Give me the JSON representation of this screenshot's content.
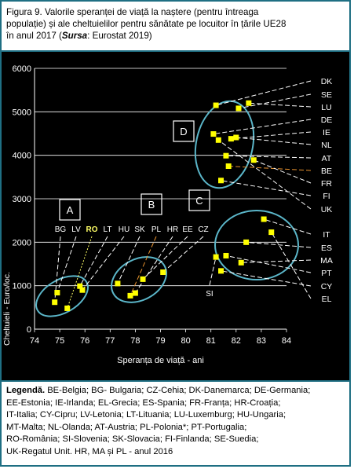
{
  "figure": {
    "title_line1": "Figura 9.  Valorile speranței de viață la naștere  (pentru întreaga",
    "title_line2": "populație)  și ale cheltuielilor  pentru sănătate pe locuitor  în țările UE28",
    "title_line3_pre": "în anul 2017  (",
    "title_source_label": "Sursa",
    "title_source_rest": ": Eurostat 2019)"
  },
  "legend": {
    "heading": "Legendă.",
    "line1": "BE-Belgia; BG- Bulgaria; CZ-Cehia; DK-Danemarca; DE-Germania;",
    "line2": "EE-Estonia; IE-Irlanda; EL-Grecia; ES-Spania; FR-Franța;  HR-Croația;",
    "line3": " IT-Italia;  CY-Cipru;  LV-Letonia; LT-Lituania; LU-Luxemburg; HU-Ungaria;",
    "line4": "MT-Malta; NL-Olanda; AT-Austria;  PL-Polonia*; PT-Portugalia;",
    "line5": "RO-România; SI-Slovenia; SK-Slovacia;  FI-Finlanda; SE-Suedia;",
    "line6": "UK-Regatul Unit.     HR, MA și  PL - anul 2016"
  },
  "colors": {
    "background": "#000000",
    "points": "#ffff00",
    "ellipses": "#5bb6c9",
    "leaders": "#ffffff",
    "ro_label": "#ffff66",
    "orange_leader": "#e8922e",
    "frame": "#1f6f83"
  },
  "chart_data": {
    "type": "scatter",
    "xlabel": "Speranța de viață - ani",
    "ylabel": "Cheltuieli - Euro/loc.",
    "xlim": [
      74,
      84
    ],
    "ylim": [
      0,
      6000
    ],
    "x_ticks": [
      74,
      75,
      76,
      77,
      78,
      79,
      80,
      81,
      82,
      83,
      84
    ],
    "y_ticks": [
      0,
      1000,
      2000,
      3000,
      4000,
      5000,
      6000
    ],
    "grid": true,
    "groups": [
      "A",
      "B",
      "C",
      "D"
    ],
    "points": [
      {
        "label": "BG",
        "x": 74.8,
        "y": 620
      },
      {
        "label": "LV",
        "x": 74.9,
        "y": 840
      },
      {
        "label": "RO",
        "x": 75.3,
        "y": 480
      },
      {
        "label": "LT",
        "x": 75.8,
        "y": 990
      },
      {
        "label": "HU",
        "x": 75.9,
        "y": 900
      },
      {
        "label": "SK",
        "x": 77.3,
        "y": 1050
      },
      {
        "label": "PL",
        "x": 77.8,
        "y": 770
      },
      {
        "label": "HR",
        "x": 78.0,
        "y": 830
      },
      {
        "label": "EE",
        "x": 78.3,
        "y": 1150
      },
      {
        "label": "CZ",
        "x": 79.1,
        "y": 1310
      },
      {
        "label": "SI",
        "x": 81.2,
        "y": 1660
      },
      {
        "label": "CY",
        "x": 81.4,
        "y": 1340
      },
      {
        "label": "PT",
        "x": 81.6,
        "y": 1690
      },
      {
        "label": "MA",
        "x": 82.2,
        "y": 1530
      },
      {
        "label": "ES",
        "x": 82.4,
        "y": 2000
      },
      {
        "label": "IT",
        "x": 83.1,
        "y": 2530
      },
      {
        "label": "EL",
        "x": 83.4,
        "y": 2230
      },
      {
        "label": "DK",
        "x": 81.2,
        "y": 5150
      },
      {
        "label": "SE",
        "x": 82.1,
        "y": 5080
      },
      {
        "label": "LU",
        "x": 82.5,
        "y": 5200
      },
      {
        "label": "DE",
        "x": 81.1,
        "y": 4490
      },
      {
        "label": "IE",
        "x": 81.8,
        "y": 4380
      },
      {
        "label": "NL",
        "x": 82.0,
        "y": 4410
      },
      {
        "label": "AT",
        "x": 81.6,
        "y": 3990
      },
      {
        "label": "BE",
        "x": 81.7,
        "y": 3750
      },
      {
        "label": "FR",
        "x": 82.7,
        "y": 3890
      },
      {
        "label": "FI",
        "x": 81.4,
        "y": 3420
      },
      {
        "label": "UK",
        "x": 81.3,
        "y": 4350
      }
    ],
    "top_labels": [
      "BG",
      "LV",
      "RO",
      "LT",
      "HU",
      "SK",
      "PL",
      "HR",
      "EE",
      "CZ",
      "SI"
    ],
    "right_labels": [
      "DK",
      "SE",
      "LU",
      "DE",
      "IE",
      "NL",
      "AT",
      "BE",
      "FR",
      "FI",
      "UK",
      "IT",
      "ES",
      "MA",
      "PT",
      "CY",
      "EL"
    ]
  }
}
